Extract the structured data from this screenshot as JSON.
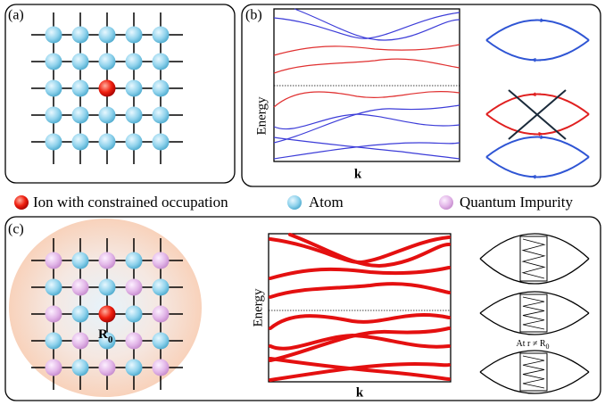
{
  "panel_a": {
    "label": "(a)"
  },
  "panel_b": {
    "label": "(b)",
    "y_axis_label": "Energy",
    "x_axis_label": "k"
  },
  "legend": {
    "items": [
      "Ion with constrained occupation",
      "Atom",
      "Quantum Impurity"
    ]
  },
  "panel_c": {
    "label": "(c)",
    "site_label": {
      "main": "R",
      "sub": "0"
    },
    "y_axis_label": "Energy",
    "x_axis_label": "k",
    "note": {
      "main": "At r ≠ R",
      "sub": "0"
    }
  }
}
